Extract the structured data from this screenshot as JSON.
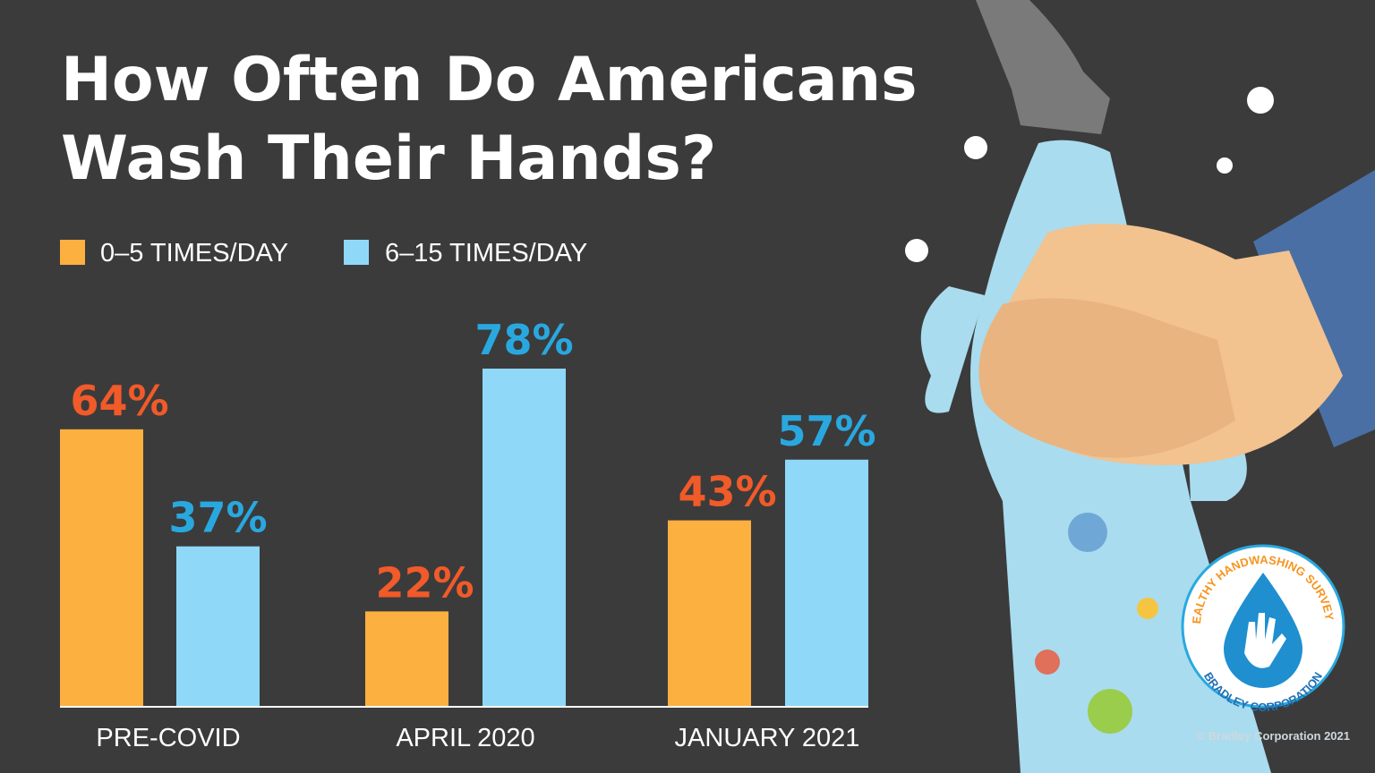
{
  "chart_data": {
    "type": "bar",
    "title": "How Often Do Americans Wash Their Hands?",
    "title_lines": [
      "How Often Do Americans",
      "Wash Their Hands?"
    ],
    "categories": [
      "PRE-COVID",
      "APRIL 2020",
      "JANUARY 2021"
    ],
    "series": [
      {
        "name": "0–5 TIMES/DAY",
        "values": [
          64,
          22,
          43
        ],
        "labels": [
          "64%",
          "22%",
          "43%"
        ],
        "color": "#fbb040",
        "label_color": "#f15a29"
      },
      {
        "name": "6–15 TIMES/DAY",
        "values": [
          37,
          78,
          57
        ],
        "labels": [
          "37%",
          "78%",
          "57%"
        ],
        "color": "#8fd8f8",
        "label_color": "#29a8e0"
      }
    ],
    "ylim": [
      0,
      100
    ],
    "grid": false,
    "legend": "top-left",
    "xlabel": "",
    "ylabel": ""
  },
  "colors": {
    "background": "#3b3b3b",
    "axis": "#ffffff"
  },
  "badge": {
    "top_text": "HEALTHY HANDWASHING SURVEY™",
    "bottom_text": "BRADLEY CORPORATION"
  },
  "copyright": "© Bradley Corporation 2021"
}
